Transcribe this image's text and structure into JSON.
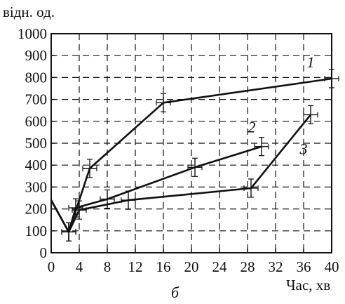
{
  "chart_data": {
    "type": "line",
    "ylabel": "відн. од.",
    "xlabel": "Час, хв",
    "panel_label": "б",
    "xlim": [
      0,
      40
    ],
    "ylim": [
      0,
      1000
    ],
    "xticks": [
      0,
      4,
      8,
      12,
      16,
      20,
      24,
      28,
      32,
      36,
      40
    ],
    "yticks": [
      0,
      100,
      200,
      300,
      400,
      500,
      600,
      700,
      800,
      900,
      1000
    ],
    "grid": true,
    "grid_style": "dashed",
    "line_color": "#111111",
    "series": [
      {
        "name": "1",
        "points": [
          [
            0,
            240
          ],
          [
            2.5,
            95
          ],
          [
            5.5,
            385
          ],
          [
            16,
            685
          ],
          [
            40,
            795
          ]
        ]
      },
      {
        "name": "2",
        "points": [
          [
            0,
            240
          ],
          [
            2.5,
            95
          ],
          [
            3.5,
            205
          ],
          [
            8,
            245
          ],
          [
            20.5,
            390
          ],
          [
            30,
            485
          ]
        ]
      },
      {
        "name": "3",
        "points": [
          [
            0,
            240
          ],
          [
            2.5,
            95
          ],
          [
            4,
            195
          ],
          [
            11,
            240
          ],
          [
            28.5,
            295
          ],
          [
            37,
            630
          ]
        ]
      }
    ]
  }
}
